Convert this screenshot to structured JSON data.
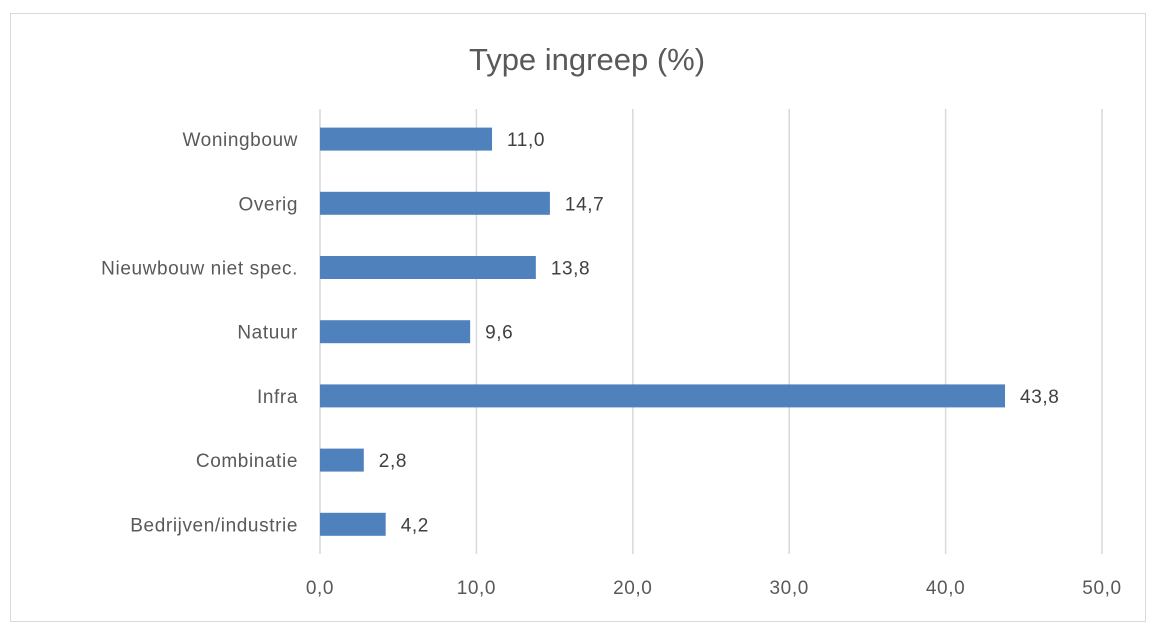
{
  "chart_data": {
    "type": "bar",
    "orientation": "horizontal",
    "title": "Type ingreep (%)",
    "categories": [
      "Woningbouw",
      "Overig",
      "Nieuwbouw niet spec.",
      "Natuur",
      "Infra",
      "Combinatie",
      "Bedrijven/industrie"
    ],
    "values": [
      11.0,
      14.7,
      13.8,
      9.6,
      43.8,
      2.8,
      4.2
    ],
    "data_labels": [
      "11,0",
      "14,7",
      "13,8",
      "9,6",
      "43,8",
      "2,8",
      "4,2"
    ],
    "xlim": [
      0,
      50
    ],
    "x_ticks": [
      0,
      10,
      20,
      30,
      40,
      50
    ],
    "x_tick_labels": [
      "0,0",
      "10,0",
      "20,0",
      "30,0",
      "40,0",
      "50,0"
    ],
    "grid": "vertical",
    "legend": "none",
    "bar_color": "#4f81bd"
  }
}
